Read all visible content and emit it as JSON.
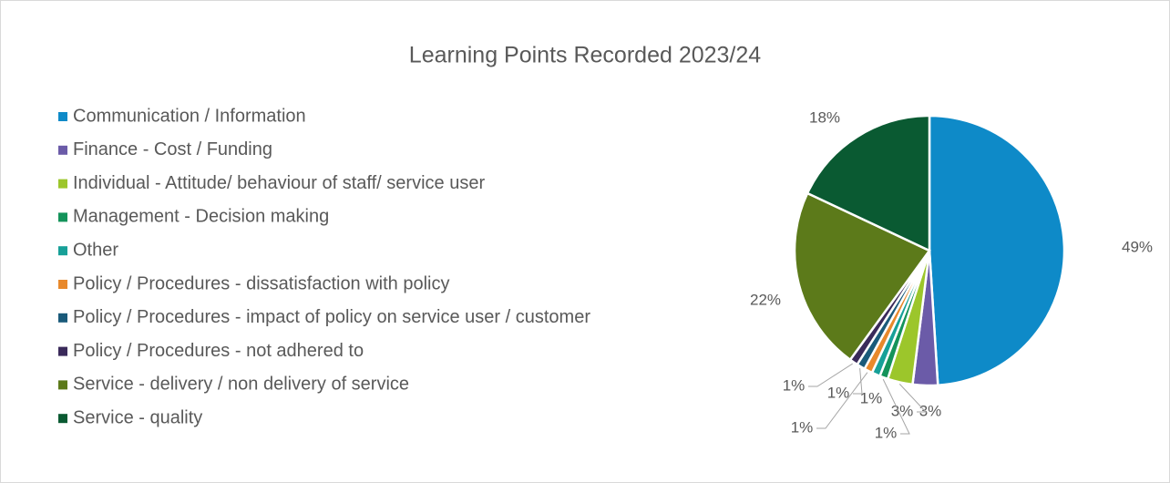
{
  "chart_data": {
    "type": "pie",
    "title": "Learning Points Recorded 2023/24",
    "categories": [
      "Communication / Information",
      "Finance - Cost / Funding",
      "Individual - Attitude/ behaviour of staff/ service user",
      "Management - Decision making",
      "Other",
      "Policy / Procedures - dissatisfaction with policy",
      "Policy / Procedures - impact of policy on service user / customer",
      "Policy / Procedures - not adhered to",
      "Service - delivery / non delivery of service",
      "Service - quality"
    ],
    "values": [
      49,
      3,
      3,
      1,
      1,
      1,
      1,
      1,
      22,
      18
    ],
    "value_labels": [
      "49%",
      "3%",
      "3%",
      "1%",
      "1%",
      "1%",
      "1%",
      "1%",
      "22%",
      "18%"
    ],
    "colors": [
      "#0e8ac8",
      "#6b5ba8",
      "#9cc62b",
      "#14935a",
      "#17a098",
      "#e8892c",
      "#1a5a7a",
      "#3a2a5a",
      "#5c7a1a",
      "#0a5a32"
    ],
    "legend": "left"
  }
}
